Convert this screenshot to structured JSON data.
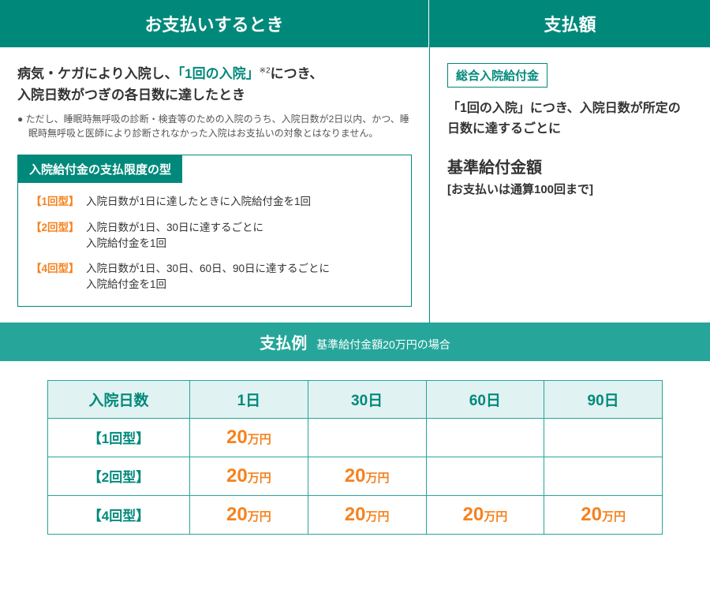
{
  "colors": {
    "teal_dark": "#00897b",
    "teal_light": "#26a69a",
    "teal_bg": "#e0f2f1",
    "orange": "#f5821f",
    "text": "#333333",
    "note": "#555555",
    "white": "#ffffff"
  },
  "left": {
    "header": "お支払いするとき",
    "lead_pre": "病気・ケガにより入院し、",
    "lead_hl": "「1回の入院」",
    "lead_sup": "※2",
    "lead_post1": "につき、",
    "lead_post2": "入院日数がつぎの各日数に達したとき",
    "note": "● ただし、睡眠時無呼吸の診断・検査等のための入院のうち、入院日数が2日以内、かつ、睡眠時無呼吸と医師により診断されなかった入院はお支払いの対象とはなりません。",
    "box_title": "入院給付金の支払限度の型",
    "types": [
      {
        "label": "【1回型】",
        "text": "入院日数が1日に達したときに入院給付金を1回"
      },
      {
        "label": "【2回型】",
        "text": "入院日数が1日、30日に達するごとに\n入院給付金を1回"
      },
      {
        "label": "【4回型】",
        "text": "入院日数が1日、30日、60日、90日に達するごとに\n入院給付金を1回"
      }
    ]
  },
  "right": {
    "header": "支払額",
    "badge": "総合入院給付金",
    "lead": "「1回の入院」につき、入院日数が所定の日数に達するごとに",
    "kijun": "基準給付金額",
    "kijun_sub": "[お支払いは通算100回まで]"
  },
  "example": {
    "title": "支払例",
    "subtitle": "基準給付金額20万円の場合",
    "col_header": "入院日数",
    "columns": [
      "1日",
      "30日",
      "60日",
      "90日"
    ],
    "rows": [
      {
        "label": "【1回型】",
        "cells": [
          "20万円",
          "",
          "",
          ""
        ]
      },
      {
        "label": "【2回型】",
        "cells": [
          "20万円",
          "20万円",
          "",
          ""
        ]
      },
      {
        "label": "【4回型】",
        "cells": [
          "20万円",
          "20万円",
          "20万円",
          "20万円"
        ]
      }
    ]
  }
}
